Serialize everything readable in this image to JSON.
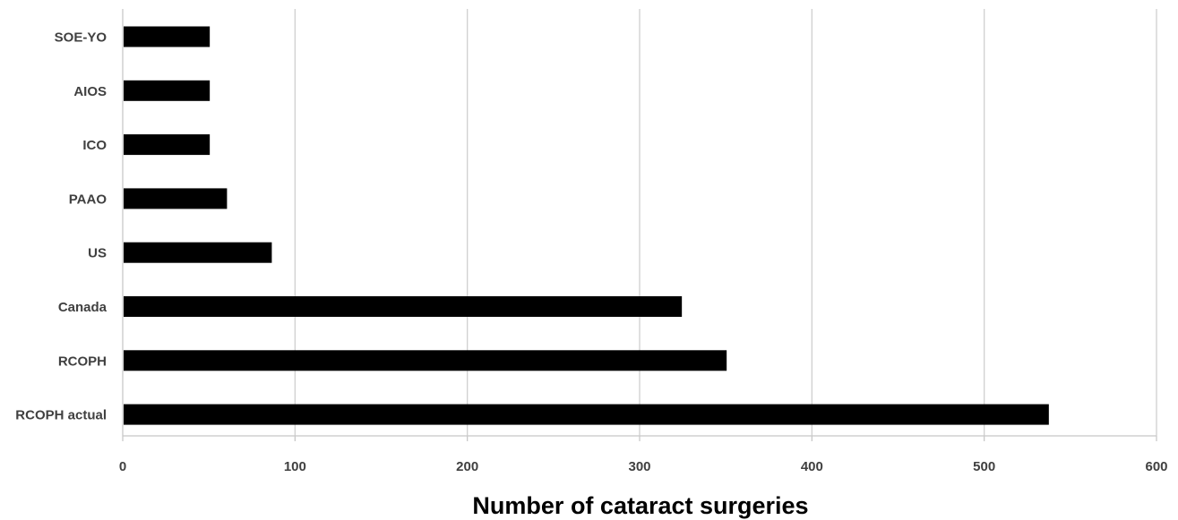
{
  "chart_data": {
    "type": "bar",
    "orientation": "horizontal",
    "categories": [
      "SOE-YO",
      "AIOS",
      "ICO",
      "PAAO",
      "US",
      "Canada",
      "RCOPH",
      "RCOPH actual"
    ],
    "values": [
      50,
      50,
      50,
      60,
      86,
      324,
      350,
      537
    ],
    "xlabel": "Number of cataract surgeries",
    "ylabel": "",
    "xlim": [
      0,
      600
    ],
    "xticks": [
      0,
      100,
      200,
      300,
      400,
      500,
      600
    ],
    "grid": "vertical",
    "legend": "none",
    "bar_color": "#000000"
  }
}
